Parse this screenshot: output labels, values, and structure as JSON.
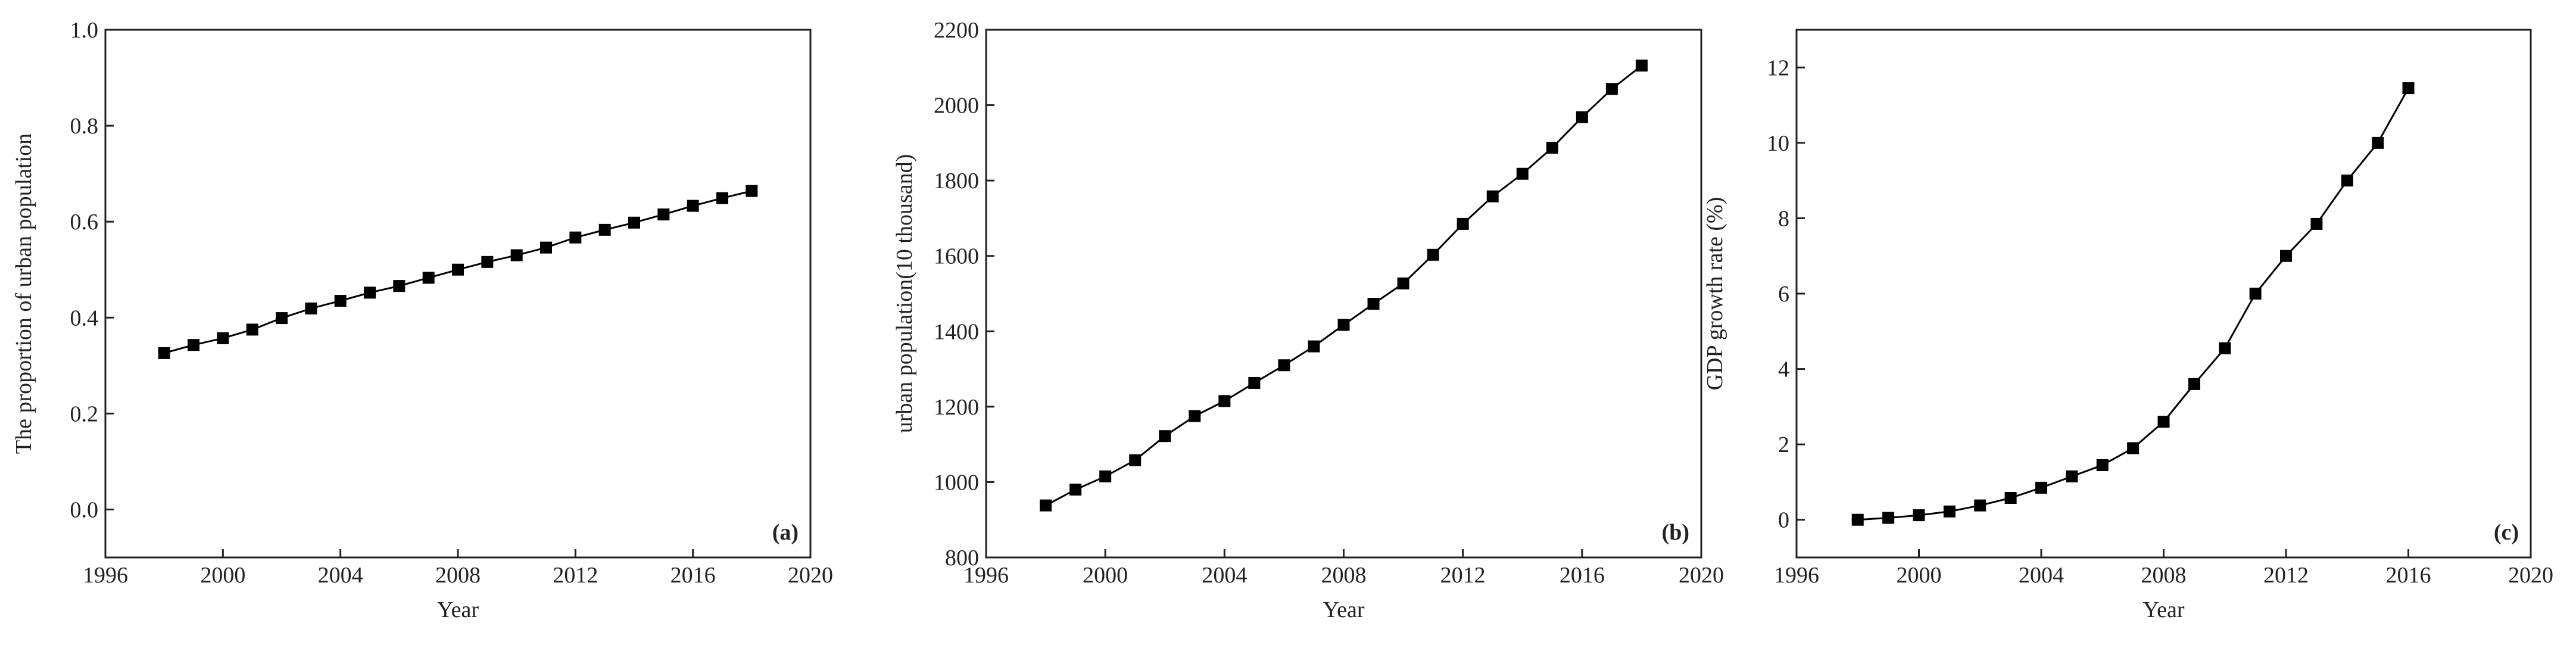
{
  "chart_data": [
    {
      "type": "line",
      "panel_label": "(a)",
      "xlabel": "Year",
      "ylabel": "The proportion of urban population",
      "color": "#000000",
      "x": [
        1998,
        1999,
        2000,
        2001,
        2002,
        2003,
        2004,
        2005,
        2006,
        2007,
        2008,
        2009,
        2010,
        2011,
        2012,
        2013,
        2014,
        2015,
        2016,
        2017,
        2018
      ],
      "values": [
        0.326,
        0.343,
        0.357,
        0.375,
        0.399,
        0.419,
        0.435,
        0.452,
        0.466,
        0.483,
        0.5,
        0.516,
        0.53,
        0.546,
        0.567,
        0.583,
        0.598,
        0.615,
        0.633,
        0.649,
        0.664
      ],
      "xlim": [
        1996,
        2020
      ],
      "xticks": [
        1996,
        2000,
        2004,
        2008,
        2012,
        2016,
        2020
      ],
      "ylim": [
        -0.1,
        1.0
      ],
      "yticks": [
        {
          "value": 0,
          "label": "0.0"
        },
        0.2,
        0.4,
        0.6,
        0.8,
        {
          "value": 1,
          "label": "1.0"
        }
      ]
    },
    {
      "type": "line",
      "panel_label": "(b)",
      "xlabel": "Year",
      "ylabel": "urban population(10 thousand)",
      "color": "#000000",
      "x": [
        1998,
        1999,
        2000,
        2001,
        2002,
        2003,
        2004,
        2005,
        2006,
        2007,
        2008,
        2009,
        2010,
        2011,
        2012,
        2013,
        2014,
        2015,
        2016,
        2017,
        2018
      ],
      "values": [
        938,
        980,
        1015,
        1058,
        1122,
        1175,
        1215,
        1263,
        1310,
        1360,
        1417,
        1473,
        1527,
        1603,
        1685,
        1758,
        1818,
        1887,
        1968,
        2043,
        2105
      ],
      "xlim": [
        1996,
        2020
      ],
      "xticks": [
        1996,
        2000,
        2004,
        2008,
        2012,
        2016,
        2020
      ],
      "ylim": [
        800,
        2200
      ],
      "yticks": [
        800,
        1000,
        1200,
        1400,
        1600,
        1800,
        2000,
        2200
      ]
    },
    {
      "type": "line",
      "panel_label": "(c)",
      "xlabel": "Year",
      "ylabel": "GDP growth rate (%)",
      "color": "#000000",
      "x": [
        1998,
        1999,
        2000,
        2001,
        2002,
        2003,
        2004,
        2005,
        2006,
        2007,
        2008,
        2009,
        2010,
        2011,
        2012,
        2013,
        2014,
        2015,
        2016
      ],
      "values": [
        0,
        0.05,
        0.12,
        0.22,
        0.38,
        0.58,
        0.85,
        1.15,
        1.45,
        1.9,
        2.6,
        3.6,
        4.55,
        6.0,
        7.0,
        7.85,
        9.0,
        10.0,
        11.45
      ],
      "xlim": [
        1996,
        2020
      ],
      "xticks": [
        1996,
        2000,
        2004,
        2008,
        2012,
        2016,
        2020
      ],
      "ylim": [
        -1,
        13
      ],
      "yticks": [
        0,
        2,
        4,
        6,
        8,
        10,
        12
      ]
    }
  ]
}
